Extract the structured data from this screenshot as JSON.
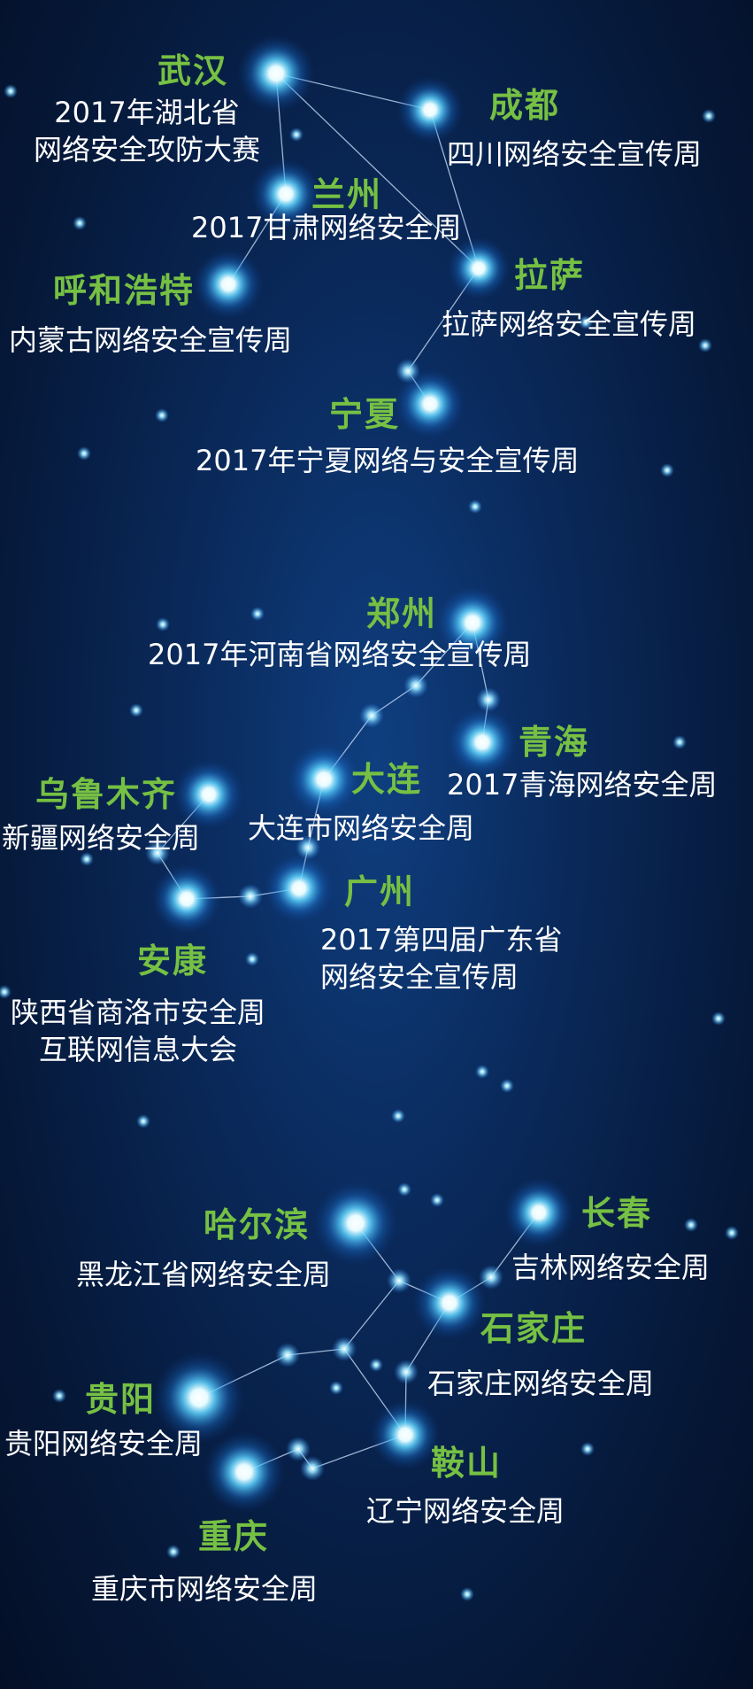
{
  "colors": {
    "city_label": "#76c043",
    "event_text": "#ffffff",
    "line": "#cfe6ff"
  },
  "groups": [
    {
      "labels": [
        {
          "id": "wuhan",
          "city": "武汉",
          "event": "2017年湖北省\n网络安全攻防大赛"
        },
        {
          "id": "chengdu",
          "city": "成都",
          "event": "四川网络安全宣传周"
        },
        {
          "id": "lanzhou",
          "city": "兰州",
          "event": "2017甘肃网络安全周"
        },
        {
          "id": "hohhot",
          "city": "呼和浩特",
          "event": "内蒙古网络安全宣传周"
        },
        {
          "id": "lhasa",
          "city": "拉萨",
          "event": "拉萨网络安全宣传周"
        },
        {
          "id": "ningxia",
          "city": "宁夏",
          "event": "2017年宁夏网络与安全宣传周"
        }
      ]
    },
    {
      "labels": [
        {
          "id": "zhengzhou",
          "city": "郑州",
          "event": "2017年河南省网络安全宣传周"
        },
        {
          "id": "qinghai",
          "city": "青海",
          "event": "2017青海网络安全周"
        },
        {
          "id": "urumqi",
          "city": "乌鲁木齐",
          "event": "新疆网络安全周"
        },
        {
          "id": "dalian",
          "city": "大连",
          "event": "大连市网络安全周"
        },
        {
          "id": "guangzhou",
          "city": "广州",
          "event": "2017第四届广东省\n网络安全宣传周"
        },
        {
          "id": "ankang",
          "city": "安康",
          "event": "陕西省商洛市安全周\n互联网信息大会"
        }
      ]
    },
    {
      "labels": [
        {
          "id": "harbin",
          "city": "哈尔滨",
          "event": "黑龙江省网络安全周"
        },
        {
          "id": "changchun",
          "city": "长春",
          "event": "吉林网络安全周"
        },
        {
          "id": "shijiazhuang",
          "city": "石家庄",
          "event": "石家庄网络安全周"
        },
        {
          "id": "guiyang",
          "city": "贵阳",
          "event": "贵阳网络安全周"
        },
        {
          "id": "anshan",
          "city": "鞍山",
          "event": "辽宁网络安全周"
        },
        {
          "id": "chongqing",
          "city": "重庆",
          "event": "重庆市网络安全周"
        }
      ]
    }
  ]
}
